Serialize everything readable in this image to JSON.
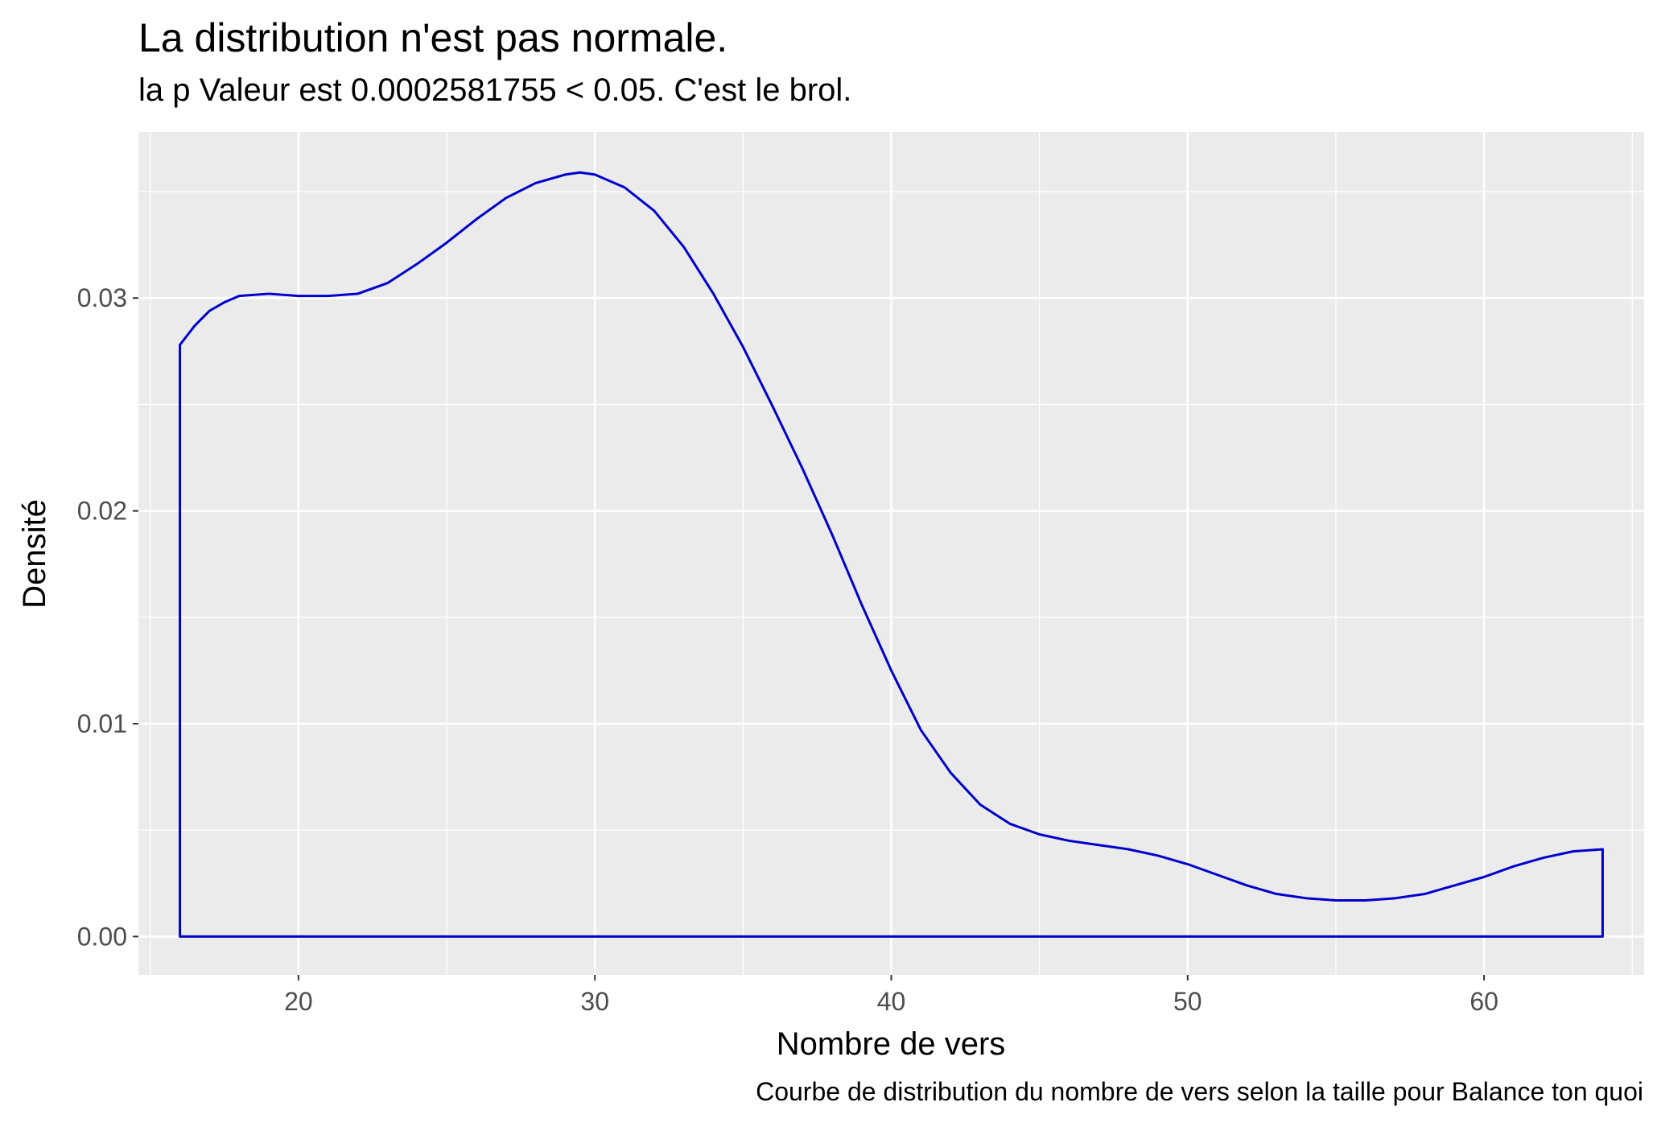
{
  "chart_data": {
    "type": "area",
    "title": "La distribution n'est pas normale.",
    "subtitle": "la p Valeur est  0.0002581755  < 0.05. C'est le brol.",
    "caption": "Courbe de distribution du nombre de vers selon la taille pour  Balance ton quoi",
    "xlabel": "Nombre de vers",
    "ylabel": "Densité",
    "xlim": [
      14.6,
      65.4
    ],
    "ylim": [
      -0.0018,
      0.0378
    ],
    "x_ticks": [
      20,
      30,
      40,
      50,
      60
    ],
    "x_tick_labels": [
      "20",
      "30",
      "40",
      "50",
      "60"
    ],
    "y_ticks": [
      0.0,
      0.01,
      0.02,
      0.03
    ],
    "y_tick_labels": [
      "0.00",
      "0.01",
      "0.02",
      "0.03"
    ],
    "grid": true,
    "series": [
      {
        "line_color": "#0000cd",
        "fill": "none",
        "x": [
          16,
          16.5,
          17,
          17.5,
          18,
          19,
          20,
          21,
          22,
          23,
          24,
          25,
          26,
          27,
          28,
          29,
          29.5,
          30,
          31,
          32,
          33,
          34,
          35,
          36,
          37,
          38,
          39,
          40,
          41,
          42,
          43,
          44,
          45,
          46,
          47,
          48,
          49,
          50,
          51,
          52,
          53,
          54,
          55,
          56,
          57,
          58,
          59,
          60,
          61,
          62,
          63,
          64
        ],
        "y": [
          0.0278,
          0.0287,
          0.0294,
          0.0298,
          0.0301,
          0.0302,
          0.0301,
          0.0301,
          0.0302,
          0.0307,
          0.0316,
          0.0326,
          0.0337,
          0.0347,
          0.0354,
          0.0358,
          0.0359,
          0.0358,
          0.0352,
          0.0341,
          0.0324,
          0.0302,
          0.0277,
          0.0249,
          0.022,
          0.0189,
          0.0156,
          0.0125,
          0.0097,
          0.0077,
          0.0062,
          0.0053,
          0.0048,
          0.0045,
          0.0043,
          0.0041,
          0.0038,
          0.0034,
          0.0029,
          0.0024,
          0.002,
          0.0018,
          0.0017,
          0.0017,
          0.0018,
          0.002,
          0.0024,
          0.0028,
          0.0033,
          0.0037,
          0.004,
          0.0041
        ]
      }
    ]
  }
}
